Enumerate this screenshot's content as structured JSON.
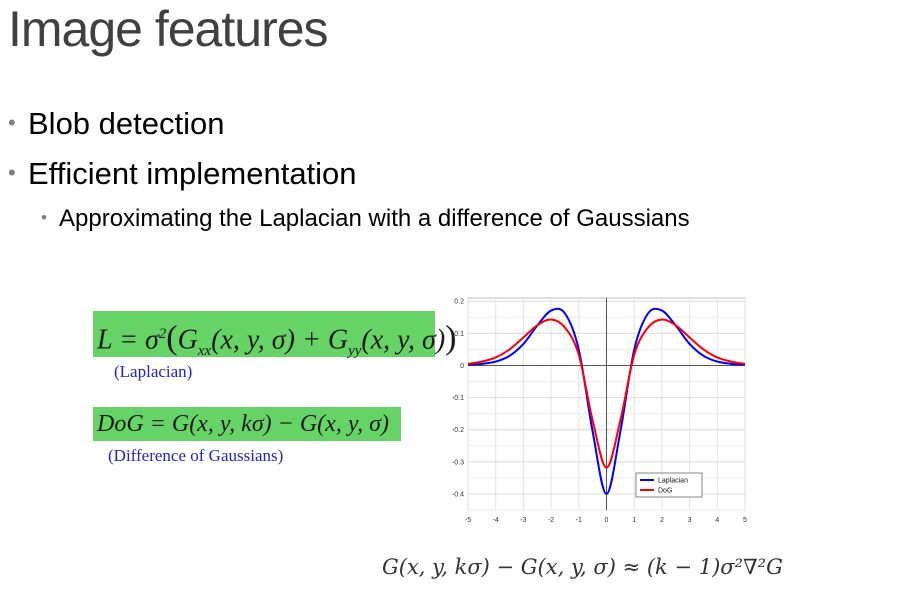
{
  "slide": {
    "title": "Image features",
    "bullets": [
      {
        "dot": "•",
        "text": "Blob detection"
      },
      {
        "dot": "•",
        "text": "Efficient implementation"
      },
      {
        "dot": "•",
        "text": "Approximating the Laplacian with a difference of Gaussians"
      }
    ],
    "equations": {
      "laplacian_caption": "(Laplacian)",
      "dog_caption": "(Difference of Gaussians)",
      "approximation": "G(x, y, kσ) − G(x, y, σ) ≈ (k − 1)σ²∇²G"
    }
  },
  "colors": {
    "highlight": "#66d366",
    "caption": "#2222cc",
    "laplacian": "#0000ff",
    "dog": "#ff0000"
  },
  "chart_data": {
    "type": "line",
    "x": [
      -5,
      -4.5,
      -4,
      -3.5,
      -3,
      -2.5,
      -2,
      -1.5,
      -1,
      -0.5,
      0,
      0.5,
      1,
      1.5,
      2,
      2.5,
      3,
      3.5,
      4,
      4.5,
      5
    ],
    "series": [
      {
        "name": "Laplacian",
        "color": "#0000ff",
        "values": [
          0.002,
          0.005,
          0.012,
          0.03,
          0.067,
          0.124,
          0.171,
          0.162,
          0.049,
          -0.206,
          -0.4,
          -0.206,
          0.049,
          0.162,
          0.171,
          0.124,
          0.067,
          0.03,
          0.012,
          0.005,
          0.002
        ]
      },
      {
        "name": "DoG",
        "color": "#ff0000",
        "values": [
          0.005,
          0.012,
          0.025,
          0.05,
          0.087,
          0.125,
          0.143,
          0.118,
          0.033,
          -0.171,
          -0.318,
          -0.171,
          0.033,
          0.118,
          0.143,
          0.125,
          0.087,
          0.05,
          0.025,
          0.012,
          0.005
        ]
      }
    ],
    "xticks": [
      "-5",
      "-4",
      "-3",
      "-2",
      "-1",
      "0",
      "1",
      "2",
      "3",
      "4",
      "5"
    ],
    "yticks": [
      "0.2",
      "0.1",
      "0",
      "-0.1",
      "-0.2",
      "-0.3",
      "-0.4"
    ],
    "xlim": [
      -5,
      5
    ],
    "ylim": [
      -0.45,
      0.21
    ],
    "grid": true,
    "legend_position": "bottom-right"
  }
}
